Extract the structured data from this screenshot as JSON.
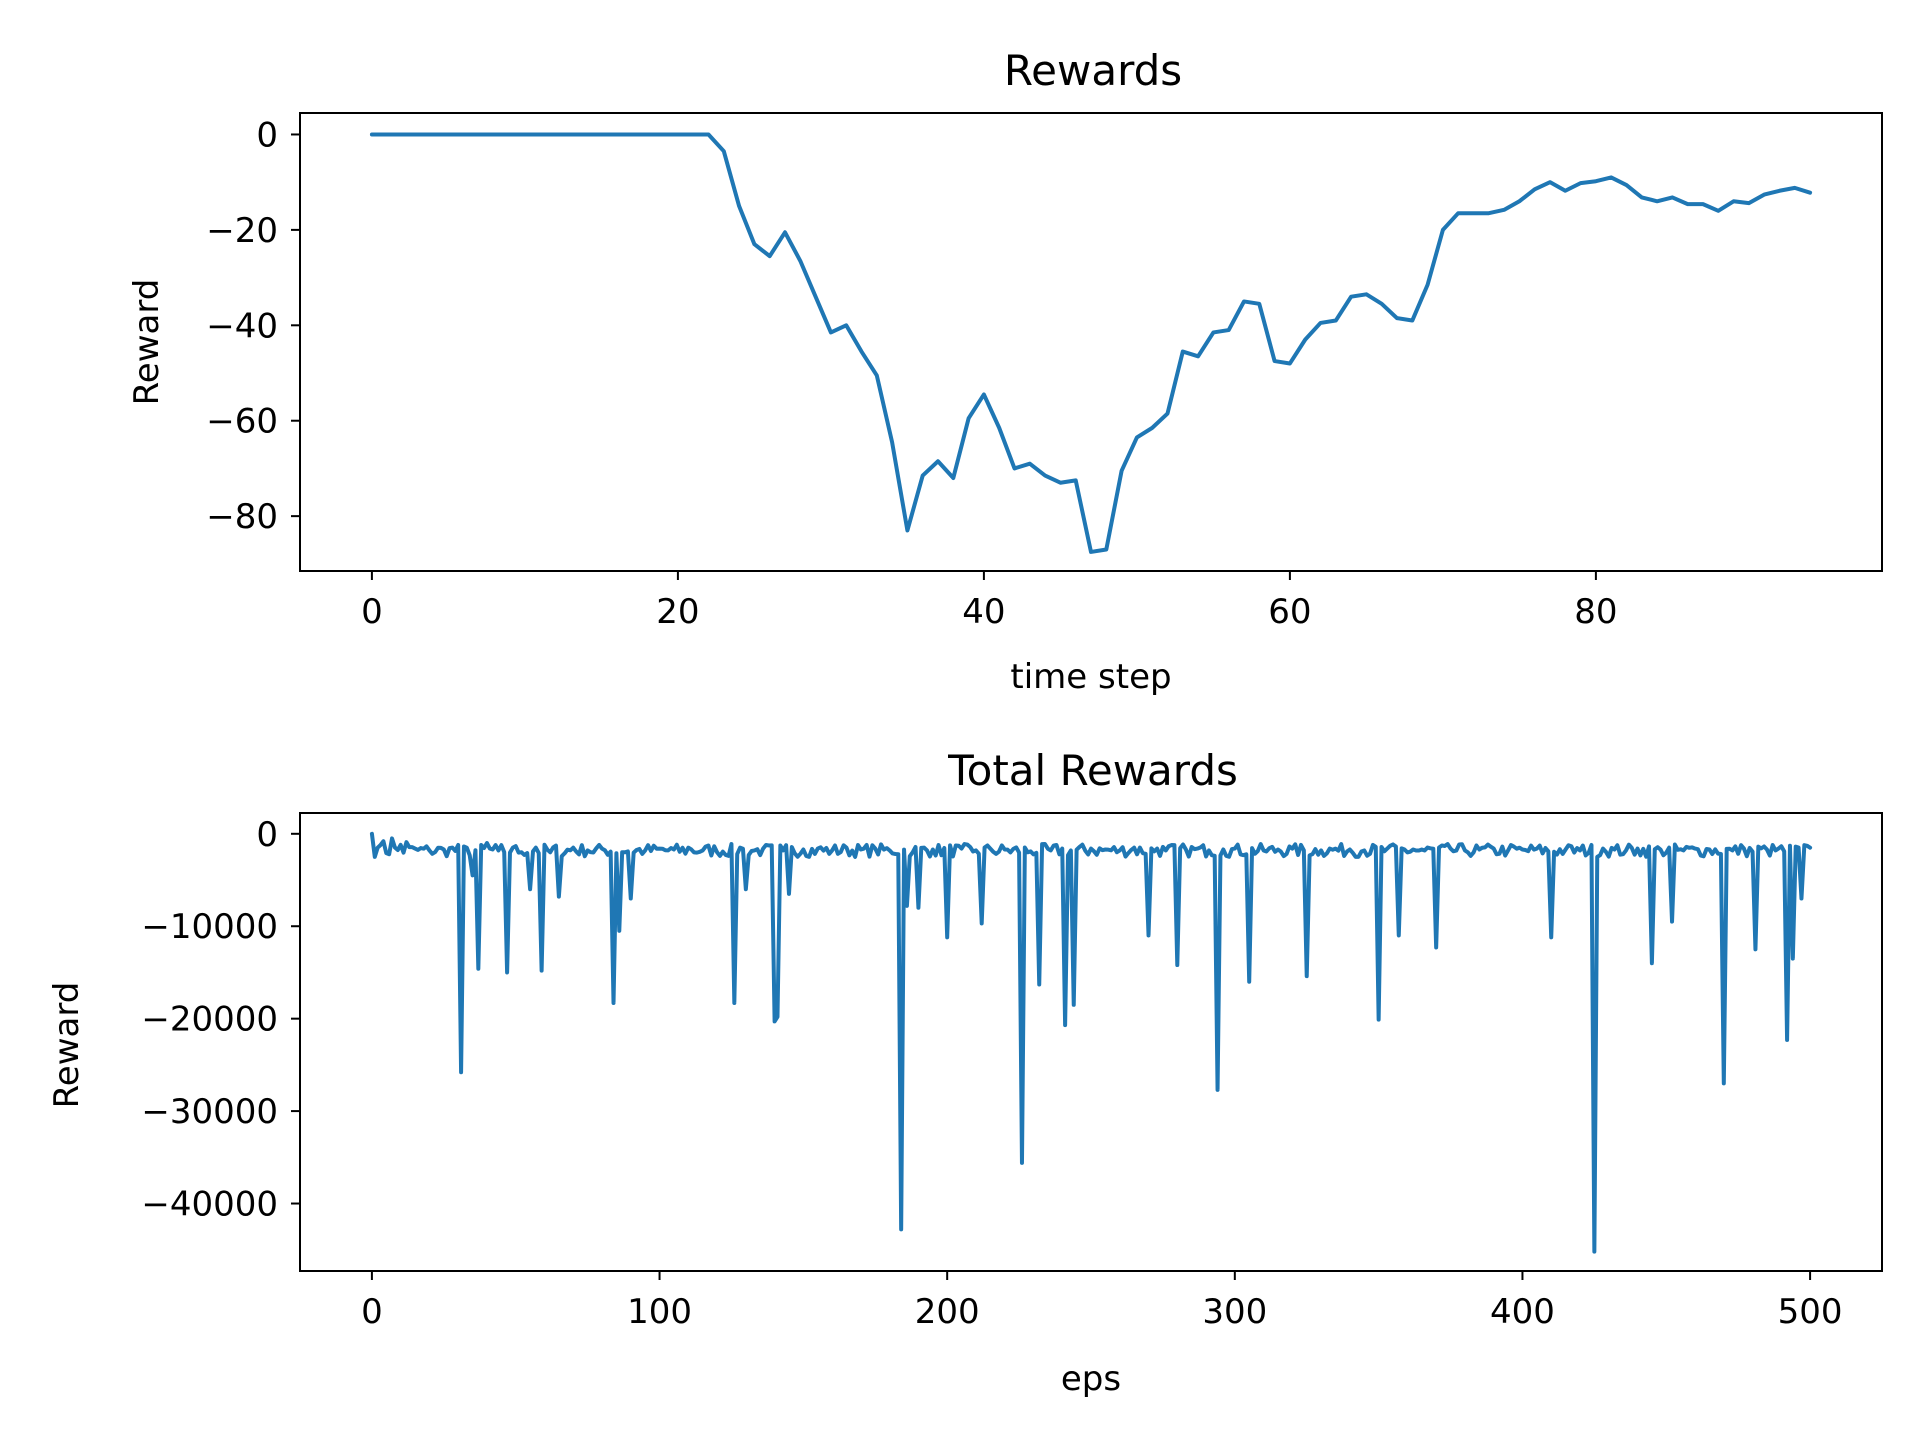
{
  "chart_data": [
    {
      "type": "line",
      "title": "Rewards",
      "xlabel": "time step",
      "ylabel": "Reward",
      "xlim": [
        -4.7,
        98.7
      ],
      "ylim": [
        -91.5,
        4.5
      ],
      "xticks": [
        0,
        20,
        40,
        60,
        80
      ],
      "yticks": [
        0,
        -20,
        -40,
        -60,
        -80
      ],
      "xtick_labels": [
        "0",
        "20",
        "40",
        "60",
        "80"
      ],
      "ytick_labels": [
        "0",
        "−20",
        "−40",
        "−60",
        "−80"
      ],
      "grid": false,
      "color": "#1f77b4",
      "series": [
        {
          "x": [
            0,
            1,
            2,
            3,
            4,
            5,
            6,
            7,
            8,
            9,
            10,
            11,
            12,
            13,
            14,
            15,
            16,
            17,
            18,
            19,
            20,
            21,
            22,
            23,
            24,
            25,
            26,
            27,
            28,
            29,
            30,
            31,
            32,
            33,
            34,
            35,
            36,
            37,
            38,
            39,
            40,
            41,
            42,
            43,
            44,
            45,
            46,
            47,
            48,
            49,
            50,
            51,
            52,
            53,
            54,
            55,
            56,
            57,
            58,
            59,
            60,
            61,
            62,
            63,
            64,
            65,
            66,
            67,
            68,
            69,
            70,
            71,
            72,
            73,
            74,
            75,
            76,
            77,
            78,
            79,
            80,
            81,
            82,
            83,
            84,
            85,
            86,
            87,
            88,
            89,
            90,
            91,
            92,
            93,
            94
          ],
          "values": [
            0,
            0,
            0,
            0,
            0,
            0,
            0,
            0,
            0,
            0,
            0,
            0,
            0,
            0,
            0,
            0,
            0,
            0,
            0,
            0,
            0,
            0,
            0,
            -3.5,
            -15,
            -23,
            -25.5,
            -20.5,
            -26.5,
            -34,
            -41.5,
            -40,
            -45.5,
            -50.5,
            -64.5,
            -83,
            -71.5,
            -68.5,
            -72,
            -59.5,
            -54.5,
            -61.5,
            -70,
            -69,
            -71.5,
            -73,
            -72.5,
            -87.5,
            -87,
            -70.5,
            -63.5,
            -61.5,
            -58.5,
            -45.5,
            -46.5,
            -41.5,
            -41,
            -35,
            -35.5,
            -47.5,
            -48,
            -43,
            -39.5,
            -39,
            -34,
            -33.5,
            -35.5,
            -38.5,
            -39,
            -31.5,
            -20,
            -16.5,
            -16.5,
            -16.5,
            -15.8,
            -14,
            -11.5,
            -10,
            -11.8,
            -10.2,
            -9.8,
            -9,
            -10.6,
            -13.2,
            -14,
            -13.2,
            -14.6,
            -14.6,
            -16,
            -14,
            -14.4,
            -12.6,
            -11.8,
            -11.2,
            -12.2
          ]
        }
      ]
    },
    {
      "type": "line",
      "title": "Total Rewards",
      "xlabel": "eps",
      "ylabel": "Reward",
      "xlim": [
        -25,
        525
      ],
      "ylim": [
        -47300,
        2250
      ],
      "xticks": [
        0,
        100,
        200,
        300,
        400,
        500
      ],
      "yticks": [
        0,
        -10000,
        -20000,
        -30000,
        -40000
      ],
      "xtick_labels": [
        "0",
        "100",
        "200",
        "300",
        "400",
        "500"
      ],
      "ytick_labels": [
        "0",
        "−10000",
        "−20000",
        "−30000",
        "−40000"
      ],
      "grid": false,
      "color": "#1f77b4",
      "baseline": -1800,
      "series": [
        {
          "x": [
            0,
            2,
            4,
            7,
            10,
            12,
            15,
            20,
            25,
            28,
            31,
            33,
            35,
            37,
            40,
            44,
            47,
            49,
            52,
            55,
            57,
            59,
            62,
            65,
            70,
            75,
            80,
            84,
            86,
            88,
            90,
            95,
            100,
            105,
            110,
            115,
            120,
            126,
            128,
            130,
            133,
            136,
            140,
            141,
            143,
            145,
            150,
            155,
            160,
            165,
            170,
            175,
            180,
            184,
            186,
            188,
            190,
            195,
            200,
            205,
            210,
            212,
            215,
            220,
            226,
            228,
            232,
            236,
            241,
            244,
            250,
            255,
            260,
            265,
            270,
            273,
            276,
            280,
            283,
            287,
            291,
            294,
            296,
            300,
            305,
            310,
            315,
            320,
            325,
            330,
            335,
            340,
            345,
            350,
            353,
            357,
            362,
            366,
            370,
            375,
            380,
            385,
            390,
            395,
            400,
            405,
            410,
            415,
            420,
            425,
            428,
            432,
            436,
            440,
            445,
            448,
            452,
            456,
            460,
            465,
            470,
            473,
            477,
            481,
            485,
            489,
            492,
            494,
            497,
            500
          ],
          "values": [
            0,
            -1500,
            -800,
            -500,
            -1200,
            -900,
            -1600,
            -1800,
            -1700,
            -1500,
            -25800,
            -1500,
            -4500,
            -14600,
            -1000,
            -1800,
            -15000,
            -1500,
            -2000,
            -6000,
            -1500,
            -14800,
            -2000,
            -6800,
            -1500,
            -1800,
            -1600,
            -18300,
            -10500,
            -2000,
            -7000,
            -1800,
            -1600,
            -1700,
            -1500,
            -1800,
            -2000,
            -18300,
            -1500,
            -6000,
            -1800,
            -1600,
            -20300,
            -19800,
            -1800,
            -6500,
            -1700,
            -1600,
            -1800,
            -1500,
            -1700,
            -1600,
            -1800,
            -42800,
            -7800,
            -2000,
            -8000,
            -1700,
            -11200,
            -1600,
            -1800,
            -9700,
            -1600,
            -1700,
            -35600,
            -2000,
            -16300,
            -1800,
            -20700,
            -18500,
            -1600,
            -1700,
            -1800,
            -1500,
            -11000,
            -1600,
            -1800,
            -14200,
            -1700,
            -1600,
            -1800,
            -27700,
            -1700,
            -1600,
            -16000,
            -1800,
            -1700,
            -1600,
            -15400,
            -1800,
            -1600,
            -1700,
            -1800,
            -20100,
            -1600,
            -11000,
            -1700,
            -1800,
            -12300,
            -1600,
            -1800,
            -1700,
            -1600,
            -1800,
            -1700,
            -1600,
            -11200,
            -1700,
            -1800,
            -45200,
            -1600,
            -1700,
            -1800,
            -1600,
            -14000,
            -1700,
            -9500,
            -1800,
            -1600,
            -1700,
            -27000,
            -1800,
            -1600,
            -12500,
            -1700,
            -1600,
            -22300,
            -13500,
            -7000,
            -1500
          ]
        }
      ]
    }
  ]
}
